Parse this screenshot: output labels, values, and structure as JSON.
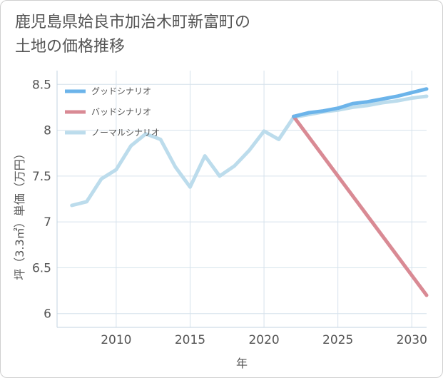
{
  "chart_data": {
    "type": "line",
    "title": "鹿児島県姶良市加治木町新富町の\n土地の価格推移",
    "xlabel": "年",
    "ylabel": "坪（3.3㎡）単価（万円）",
    "xlim": [
      2006,
      2031
    ],
    "ylim": [
      5.85,
      8.65
    ],
    "xticks": [
      2010,
      2015,
      2020,
      2025,
      2030
    ],
    "yticks": [
      6,
      6.5,
      7,
      7.5,
      8,
      8.5
    ],
    "xtick_labels": [
      "2010",
      "2015",
      "2020",
      "2025",
      "2030"
    ],
    "ytick_labels": [
      "6",
      "6.5",
      "7",
      "7.5",
      "8",
      "8.5"
    ],
    "grid": true,
    "legend_position": "top-left",
    "series": [
      {
        "name": "グッドシナリオ",
        "color": "#6cb4ea",
        "x": [
          2022,
          2023,
          2024,
          2025,
          2026,
          2027,
          2028,
          2029,
          2030,
          2031
        ],
        "y": [
          8.15,
          8.19,
          8.21,
          8.24,
          8.29,
          8.31,
          8.34,
          8.37,
          8.41,
          8.45
        ]
      },
      {
        "name": "バッドシナリオ",
        "color": "#d98a94",
        "x": [
          2022,
          2031
        ],
        "y": [
          8.15,
          6.2
        ]
      },
      {
        "name": "ノーマルシナリオ",
        "color": "#bcdcec",
        "x": [
          2007,
          2008,
          2009,
          2010,
          2011,
          2012,
          2013,
          2014,
          2015,
          2016,
          2017,
          2018,
          2019,
          2020,
          2021,
          2022,
          2023,
          2024,
          2025,
          2026,
          2027,
          2028,
          2029,
          2030,
          2031
        ],
        "y": [
          7.18,
          7.22,
          7.47,
          7.57,
          7.83,
          7.96,
          7.9,
          7.6,
          7.38,
          7.72,
          7.5,
          7.61,
          7.78,
          7.99,
          7.9,
          8.14,
          8.17,
          8.2,
          8.22,
          8.25,
          8.27,
          8.3,
          8.32,
          8.35,
          8.37
        ]
      }
    ]
  }
}
